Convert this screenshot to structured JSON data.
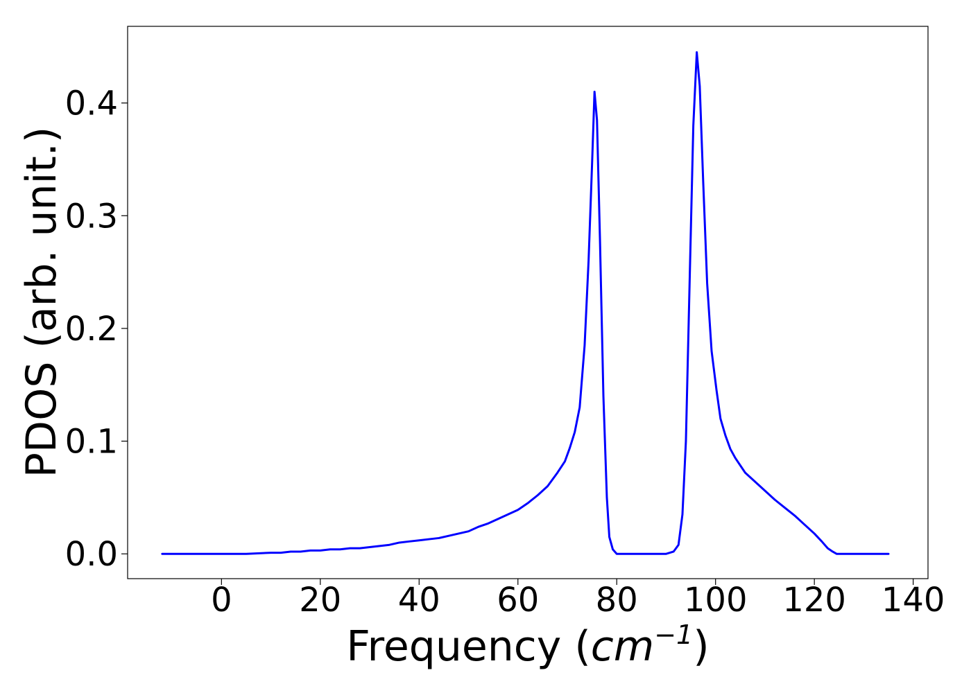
{
  "chart_data": {
    "type": "line",
    "xlabel_main": "Frequency (",
    "xlabel_unit": "cm",
    "xlabel_exp": "−1",
    "xlabel_close": ")",
    "ylabel": "PDOS (arb. unit.)",
    "xlim": [
      -19,
      143
    ],
    "ylim": [
      -0.022,
      0.468
    ],
    "xticks": [
      0,
      20,
      40,
      60,
      80,
      100,
      120,
      140
    ],
    "xtick_labels": [
      "0",
      "20",
      "40",
      "60",
      "80",
      "100",
      "120",
      "140"
    ],
    "yticks": [
      0.0,
      0.1,
      0.2,
      0.3,
      0.4
    ],
    "ytick_labels": [
      "0.0",
      "0.1",
      "0.2",
      "0.3",
      "0.4"
    ],
    "grid": false,
    "series": [
      {
        "color": "#0000ff",
        "x": [
          -12,
          0,
          5,
          10,
          12,
          14,
          16,
          18,
          20,
          22,
          24,
          26,
          28,
          30,
          32,
          34,
          36,
          38,
          40,
          42,
          44,
          46,
          48,
          50,
          52,
          54,
          56,
          58,
          60,
          62,
          64,
          66,
          68,
          69.5,
          70.5,
          71.5,
          72.5,
          73.5,
          74.3,
          75,
          75.5,
          76,
          76.6,
          77.3,
          78,
          78.5,
          79.2,
          80,
          81,
          85,
          90,
          91.5,
          92.5,
          93.3,
          94,
          94.8,
          95.5,
          96.2,
          96.8,
          97.5,
          98.3,
          99.2,
          100.2,
          101,
          102,
          103,
          104,
          106,
          108,
          110,
          112,
          114,
          116,
          118,
          120,
          121.5,
          122.7,
          123.7,
          124.5,
          126,
          130,
          135
        ],
        "y": [
          0.0,
          0.0,
          0.0,
          0.001,
          0.001,
          0.002,
          0.002,
          0.003,
          0.003,
          0.004,
          0.004,
          0.005,
          0.005,
          0.006,
          0.007,
          0.008,
          0.01,
          0.011,
          0.012,
          0.013,
          0.014,
          0.016,
          0.018,
          0.02,
          0.024,
          0.027,
          0.031,
          0.035,
          0.039,
          0.045,
          0.052,
          0.06,
          0.072,
          0.082,
          0.094,
          0.108,
          0.13,
          0.185,
          0.26,
          0.345,
          0.41,
          0.385,
          0.28,
          0.14,
          0.05,
          0.015,
          0.004,
          0.0,
          0.0,
          0.0,
          0.0,
          0.002,
          0.008,
          0.035,
          0.1,
          0.25,
          0.38,
          0.445,
          0.415,
          0.33,
          0.24,
          0.18,
          0.145,
          0.12,
          0.105,
          0.093,
          0.085,
          0.072,
          0.064,
          0.056,
          0.048,
          0.041,
          0.034,
          0.026,
          0.018,
          0.011,
          0.005,
          0.002,
          0.0,
          0.0,
          0.0,
          0.0
        ]
      }
    ]
  }
}
